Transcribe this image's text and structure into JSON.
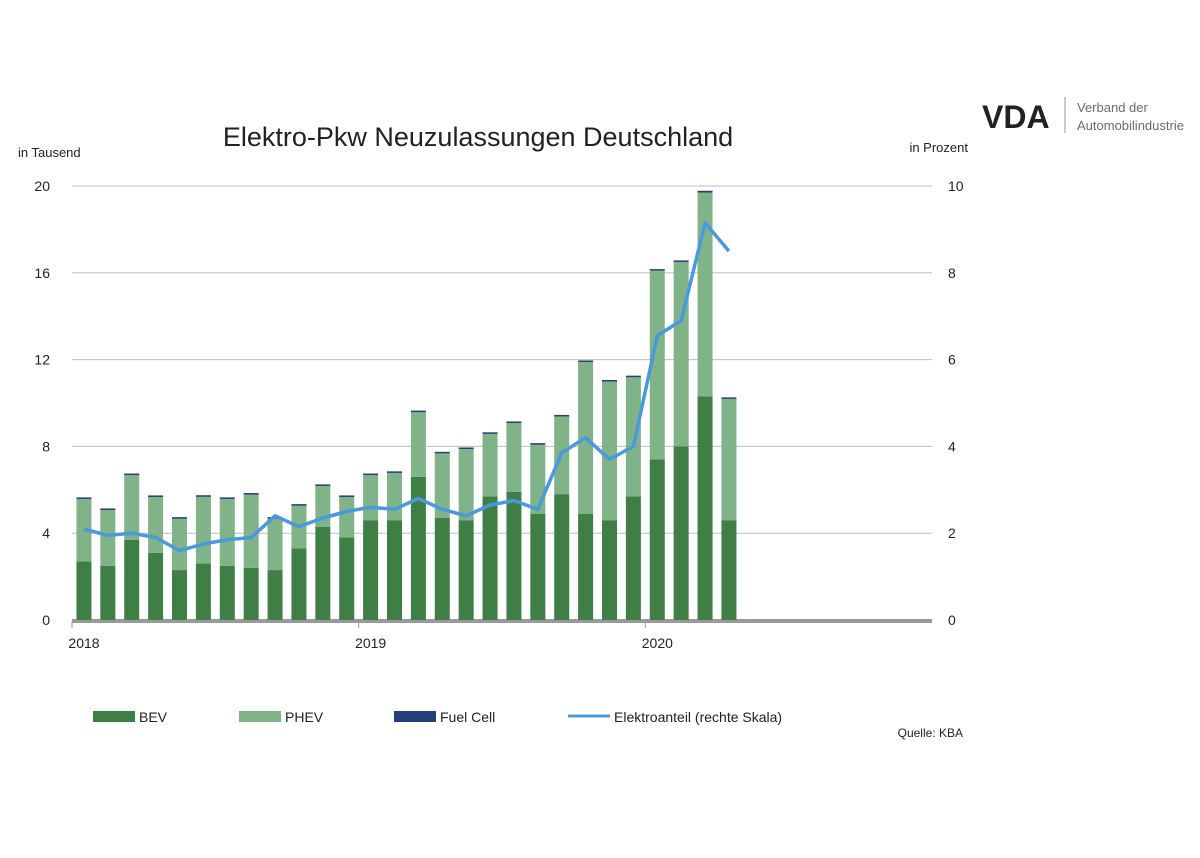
{
  "branding": {
    "logo_text": "VDA",
    "org_line1": "Verband der",
    "org_line2": "Automobilindustrie"
  },
  "source_note": "Quelle: KBA",
  "colors": {
    "bev": "#3f7f45",
    "phev": "#80b388",
    "fuel_cell": "#23407a",
    "share_line": "#4a98dd",
    "logo": "#3d8a3f",
    "grid": "#bdbdbd",
    "axis": "#9a9a9a"
  },
  "chart_data": {
    "type": "bar",
    "stacked": true,
    "title": "Elektro-Pkw Neuzulassungen Deutschland",
    "ylabel_left": "in Tausend",
    "ylabel_right": "in Prozent",
    "ylim_left": [
      0,
      20
    ],
    "ylim_right": [
      0,
      10
    ],
    "yticks_left": [
      "0",
      "4",
      "8",
      "12",
      "16",
      "20"
    ],
    "yticks_right": [
      "0",
      "2",
      "4",
      "6",
      "8",
      "10"
    ],
    "x_tick_labels": [
      {
        "label": "2018",
        "index": 0
      },
      {
        "label": "2019",
        "index": 12
      },
      {
        "label": "2020",
        "index": 24
      }
    ],
    "slots": 36,
    "grid": true,
    "legend_position": "bottom",
    "series": [
      {
        "name": "BEV",
        "kind": "bar",
        "values": [
          2.7,
          2.5,
          3.7,
          3.1,
          2.3,
          2.6,
          2.5,
          2.4,
          2.3,
          3.3,
          4.3,
          3.8,
          4.6,
          4.6,
          6.6,
          4.7,
          4.6,
          5.7,
          5.9,
          4.9,
          5.8,
          4.9,
          4.6,
          5.7,
          7.4,
          8.0,
          10.3,
          4.6
        ]
      },
      {
        "name": "PHEV",
        "kind": "bar",
        "values": [
          2.9,
          2.6,
          3.0,
          2.6,
          2.4,
          3.1,
          3.1,
          3.4,
          2.4,
          2.0,
          1.9,
          1.9,
          2.1,
          2.2,
          3.0,
          3.0,
          3.3,
          2.9,
          3.2,
          3.2,
          3.6,
          7.0,
          6.4,
          5.5,
          8.7,
          8.5,
          9.4,
          5.6
        ]
      },
      {
        "name": "Fuel Cell",
        "kind": "bar",
        "values": [
          0.05,
          0.04,
          0.05,
          0.04,
          0.04,
          0.05,
          0.05,
          0.05,
          0.04,
          0.04,
          0.05,
          0.04,
          0.05,
          0.05,
          0.05,
          0.05,
          0.05,
          0.05,
          0.05,
          0.05,
          0.05,
          0.06,
          0.06,
          0.06,
          0.07,
          0.07,
          0.08,
          0.06
        ]
      },
      {
        "name": "Elektroanteil (rechte Skala)",
        "kind": "line",
        "axis": "right",
        "values": [
          2.1,
          1.95,
          2.0,
          1.9,
          1.6,
          1.75,
          1.85,
          1.9,
          2.4,
          2.15,
          2.35,
          2.5,
          2.6,
          2.55,
          2.8,
          2.55,
          2.4,
          2.65,
          2.75,
          2.55,
          3.85,
          4.2,
          3.7,
          4.0,
          6.55,
          6.9,
          9.15,
          8.5
        ]
      }
    ]
  }
}
